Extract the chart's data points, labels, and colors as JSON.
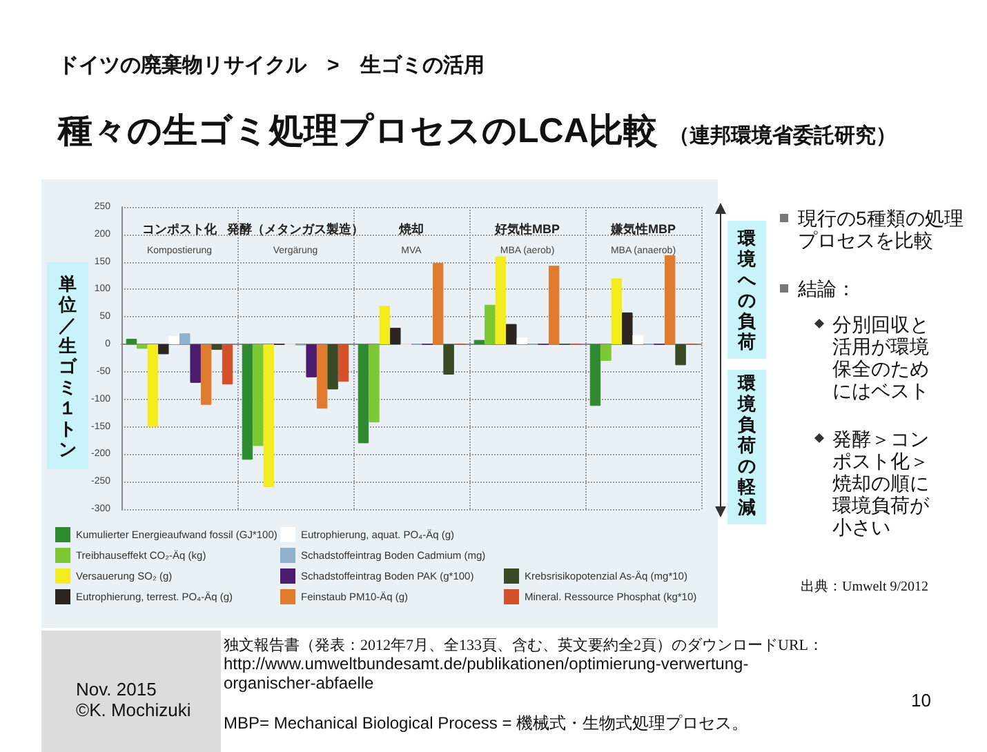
{
  "chart_data": {
    "type": "bar",
    "title": "種々の生ゴミ処理プロセスのLCA比較",
    "subtitle": "（連邦環境省委託研究）",
    "ylabel": "単位／生ゴミ１トン",
    "annotations": [
      "ドイツの廃棄物リサイクル　>　生ゴミの活用",
      "環境への負荷",
      "環境負荷の軽減",
      "現行の5種類の処理プロセスを比較",
      "結論：",
      "分別回収と活用が環境保全のためにはベスト",
      "発酵＞コンポスト化＞焼却の順に環境負荷が小さい",
      "出典：Umwelt 9/2012",
      "独文報告書（発表：2012年7月、全133頁、含む、英文要約全2頁）のダウンロードURL：",
      "http://www.umweltbundesamt.de/publikationen/optimierung-verwertung-organischer-abfaelle",
      "MBP= Mechanical Biological Process = 機械式・生物式処理プロセス。",
      "Nov. 2015",
      "©K. Mochizuki",
      "10"
    ],
    "categories": [
      "コンポスト化\nKompostierung",
      "発酵（メタンガス製造）\nVergärung",
      "焼却\nMVA",
      "好気性MBP\nMBA (aerob)",
      "嫌気性MBP\nMBA (anaerob)"
    ],
    "series": [
      {
        "name": "Kumulierter Energieaufwand fossil (GJ*100)",
        "color": "#2e8a2e",
        "values": [
          10,
          -210,
          -180,
          8,
          -112
        ]
      },
      {
        "name": "Treibhauseffekt CO₂-Äq (kg)",
        "color": "#7cc832",
        "values": [
          -8,
          -185,
          -142,
          72,
          -30
        ]
      },
      {
        "name": "Versauerung SO₂ (g)",
        "color": "#f3ec1e",
        "values": [
          -150,
          -260,
          70,
          160,
          120
        ]
      },
      {
        "name": "Eutrophierung, terrest. PO₄-Äq (g)",
        "color": "#2b2420",
        "values": [
          -18,
          0,
          30,
          37,
          58
        ]
      },
      {
        "name": "Eutrophierung, aquat. PO₄-Äq (g)",
        "color": "#ffffff",
        "values": [
          15,
          0,
          0,
          12,
          17
        ]
      },
      {
        "name": "Schadstoffeintrag Boden Cadmium (mg)",
        "color": "#8fb1cc",
        "values": [
          20,
          -2,
          0,
          0,
          0
        ]
      },
      {
        "name": "Schadstoffeintrag Boden PAK (g*100)",
        "color": "#4b1c6e",
        "values": [
          -70,
          -60,
          0,
          0,
          0
        ]
      },
      {
        "name": "Feinstaub PM10-Äq (g)",
        "color": "#e07a2e",
        "values": [
          -110,
          -117,
          148,
          143,
          162
        ]
      },
      {
        "name": "Krebsrisikopotenzial As-Äq (mg*10)",
        "color": "#3a4a24",
        "values": [
          -10,
          -82,
          -55,
          0,
          -38
        ]
      },
      {
        "name": "Mineral. Ressource Phosphat (kg*10)",
        "color": "#d2502a",
        "values": [
          -73,
          -68,
          0,
          0,
          0
        ]
      }
    ],
    "ylim": [
      -300,
      250
    ],
    "yticks": [
      -300,
      -250,
      -200,
      -150,
      -100,
      -50,
      0,
      50,
      100,
      150,
      200,
      250
    ],
    "grid": true,
    "legend": "bottom"
  }
}
